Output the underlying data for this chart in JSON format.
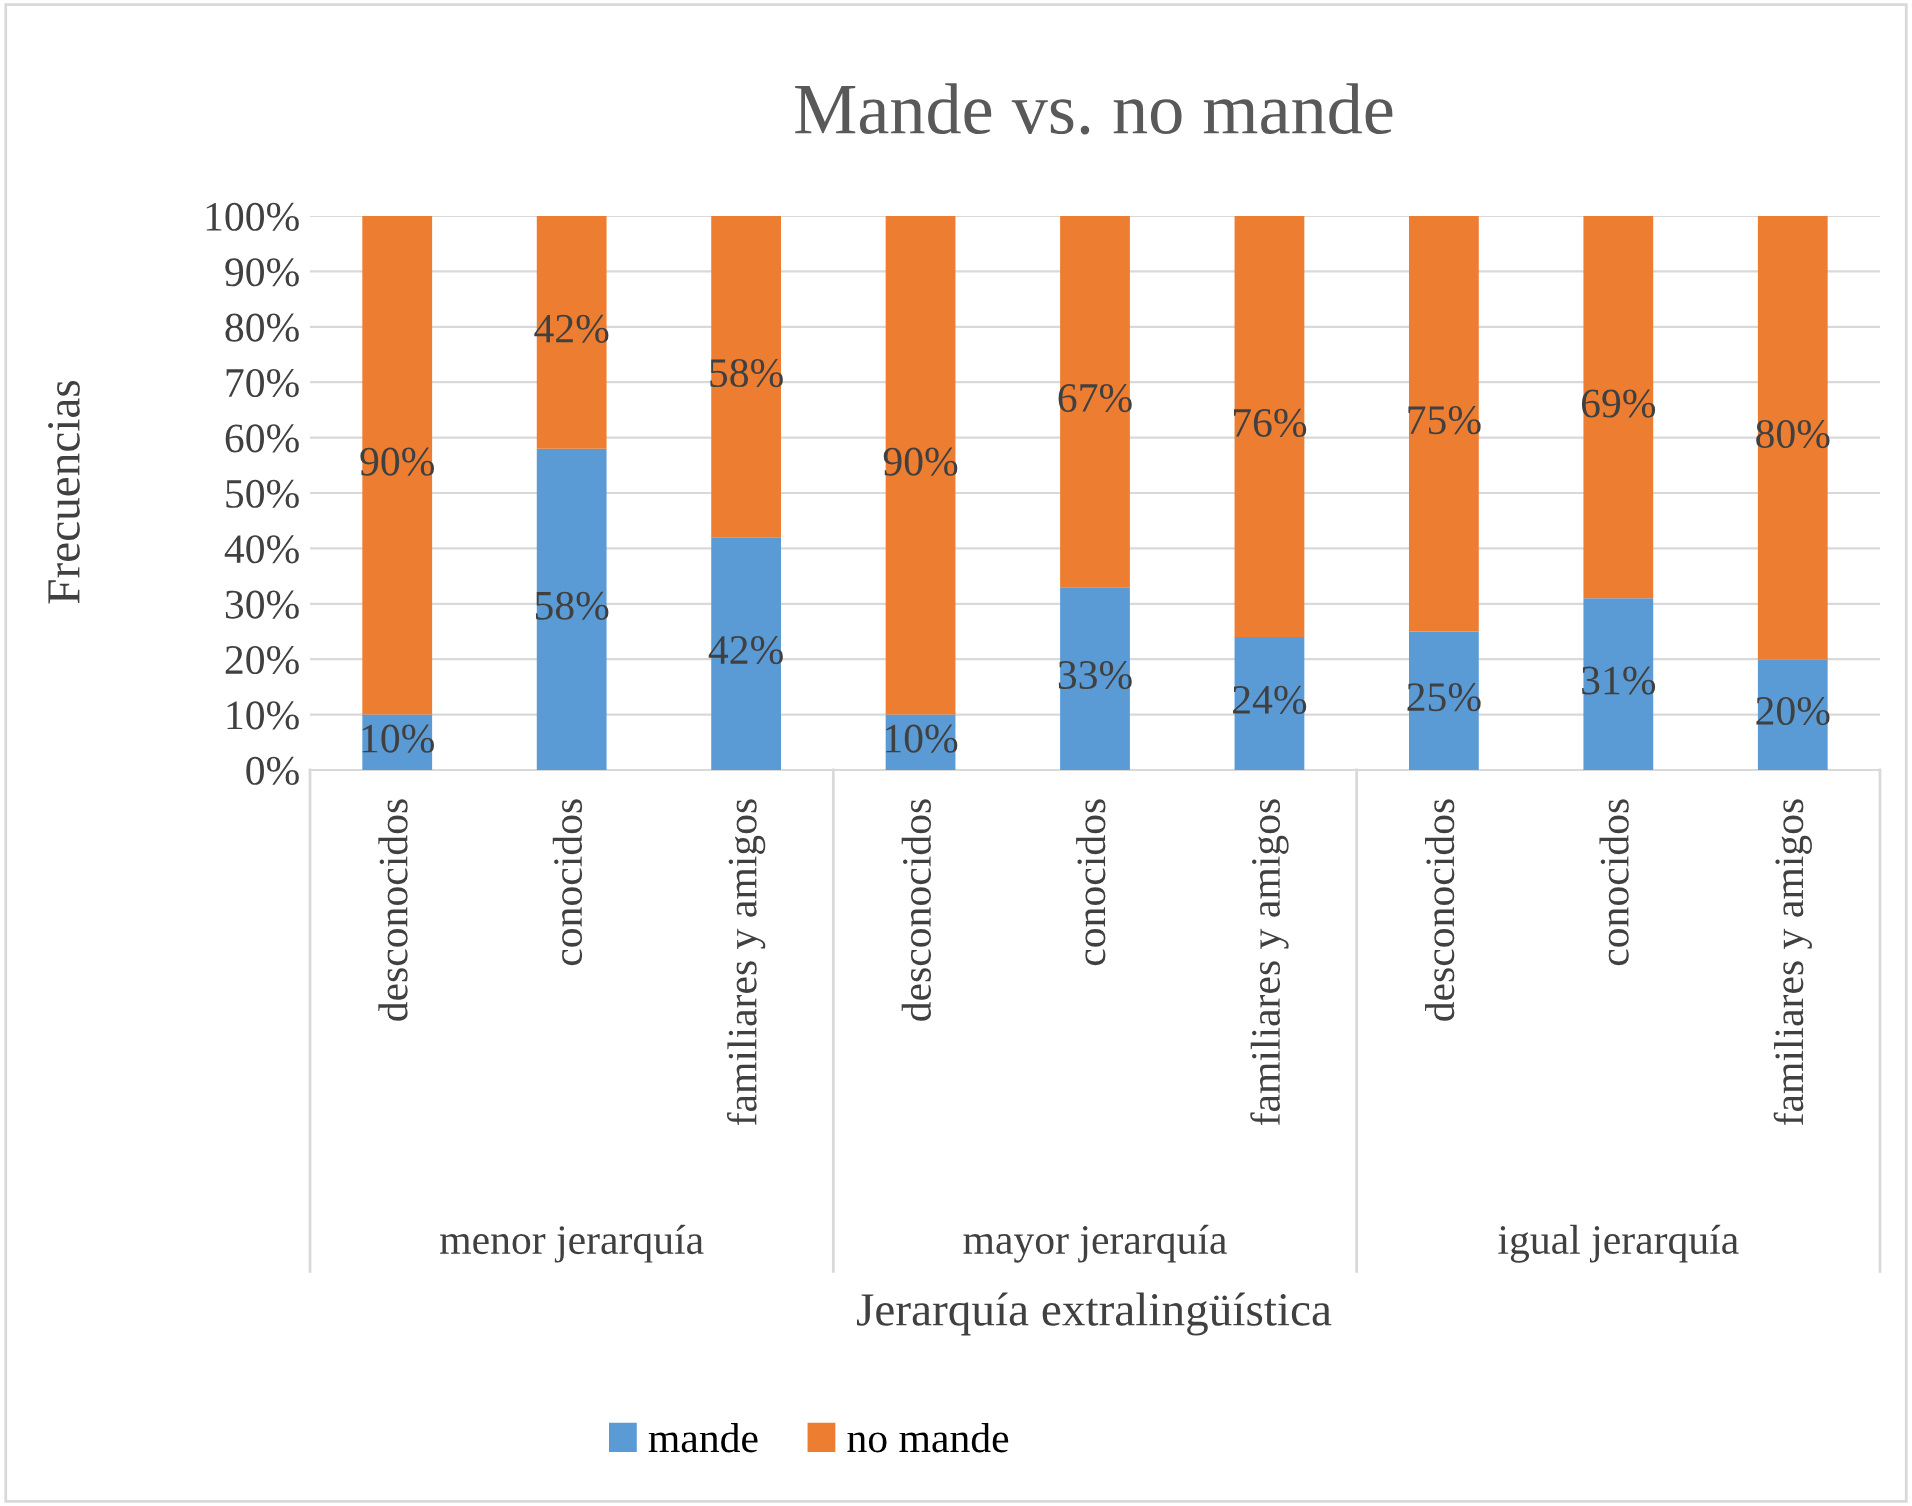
{
  "chart_data": {
    "type": "bar",
    "stacked": true,
    "title": "Mande vs. no mande",
    "xlabel": "Jerarquía extralingüística",
    "ylabel": "Frecuencias",
    "categories": [
      "desconocidos",
      "conocidos",
      "familiares y amigos",
      "desconocidos",
      "conocidos",
      "familiares y amigos",
      "desconocidos",
      "conocidos",
      "familiares y amigos"
    ],
    "series": [
      {
        "name": "mande",
        "color": "#5b9bd5",
        "values": [
          10,
          58,
          42,
          10,
          33,
          24,
          25,
          31,
          20
        ],
        "value_labels": [
          "10%",
          "58%",
          "42%",
          "10%",
          "33%",
          "24%",
          "25%",
          "31%",
          "20%"
        ]
      },
      {
        "name": "no mande",
        "color": "#ed7d31",
        "values": [
          90,
          42,
          58,
          90,
          67,
          76,
          75,
          69,
          80
        ],
        "value_labels": [
          "90%",
          "42%",
          "58%",
          "90%",
          "67%",
          "76%",
          "75%",
          "69%",
          "80%"
        ]
      }
    ],
    "annotations": [
      "menor jerarquía",
      "mayor jerarquía",
      "igual jerarquía"
    ],
    "ylim": [
      0,
      100
    ],
    "yticks": [
      {
        "value": 0,
        "label": "0%"
      },
      {
        "value": 10,
        "label": "10%"
      },
      {
        "value": 20,
        "label": "20%"
      },
      {
        "value": 30,
        "label": "30%"
      },
      {
        "value": 40,
        "label": "40%"
      },
      {
        "value": 50,
        "label": "50%"
      },
      {
        "value": 60,
        "label": "60%"
      },
      {
        "value": 70,
        "label": "70%"
      },
      {
        "value": 80,
        "label": "80%"
      },
      {
        "value": 90,
        "label": "90%"
      },
      {
        "value": 100,
        "label": "100%"
      }
    ],
    "grid": "y",
    "legend": "bottom"
  }
}
